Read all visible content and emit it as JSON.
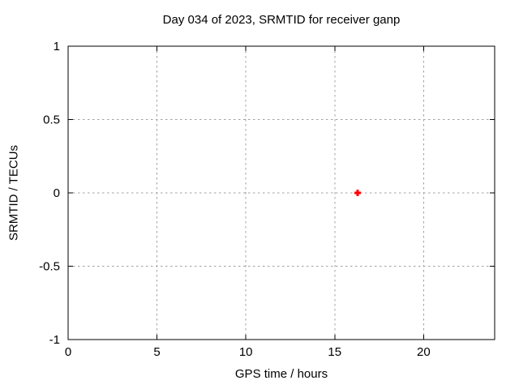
{
  "chart_data": {
    "type": "scatter",
    "title": "Day 034 of 2023, SRMTID for receiver ganp",
    "xlabel": "GPS time / hours",
    "ylabel": "SRMTID / TECUs",
    "xlim": [
      0,
      24
    ],
    "ylim": [
      -1,
      1
    ],
    "grid": true,
    "x_ticks": {
      "values": [
        0,
        5,
        10,
        15,
        20
      ],
      "labels": [
        "0",
        "5",
        "10",
        "15",
        "20"
      ]
    },
    "y_ticks": {
      "values": [
        1,
        0.5,
        0,
        -0.5,
        -1
      ],
      "labels": [
        "1",
        "0.5",
        "0",
        "-0.5",
        "-1"
      ]
    },
    "series": [
      {
        "name": "SRMTID",
        "marker": "plus",
        "color": "#ff0000",
        "points": [
          {
            "x": 16.3,
            "y": 0
          }
        ]
      }
    ],
    "colors": {
      "background": "#ffffff",
      "axis": "#000000",
      "grid": "#a0a0a0",
      "text": "#000000"
    },
    "legend": "none"
  }
}
